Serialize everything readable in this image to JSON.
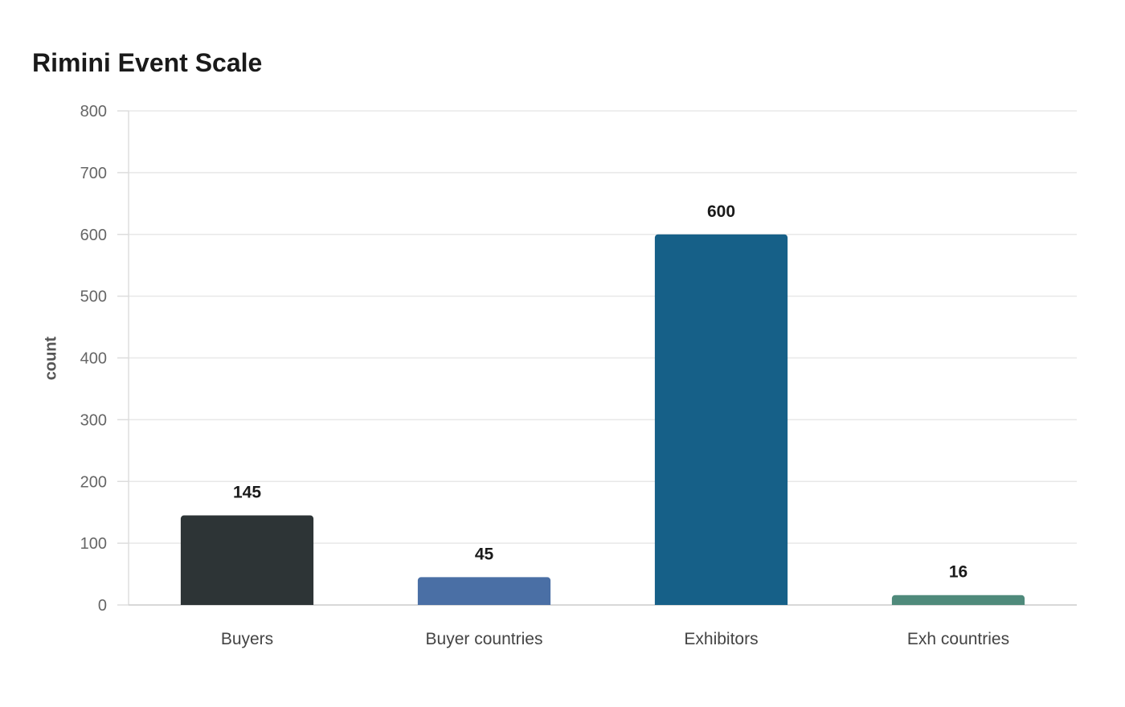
{
  "chart_data": {
    "type": "bar",
    "title": "Rimini Event Scale",
    "xlabel": "",
    "ylabel": "count",
    "categories": [
      "Buyers",
      "Buyer countries",
      "Exhibitors",
      "Exh countries"
    ],
    "values": [
      145,
      45,
      600,
      16
    ],
    "bar_colors": [
      "#2d3436",
      "#4a6fa5",
      "#166088",
      "#4f8a7b"
    ],
    "ylim": [
      0,
      800
    ],
    "yticks": [
      0,
      100,
      200,
      300,
      400,
      500,
      600,
      700,
      800
    ],
    "grid": true,
    "legend": "none",
    "data_labels": true
  }
}
